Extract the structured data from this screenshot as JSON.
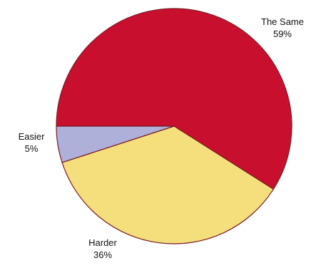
{
  "chart_data": {
    "type": "pie",
    "title": "",
    "categories": [
      "The Same",
      "Harder",
      "Easier"
    ],
    "values": [
      59,
      36,
      5
    ],
    "value_labels": [
      "59%",
      "36%",
      "5%"
    ],
    "colors": [
      "#c8102e",
      "#f5df7c",
      "#aeb0da"
    ],
    "edge_color": "#7a1a24",
    "legend": "none"
  }
}
